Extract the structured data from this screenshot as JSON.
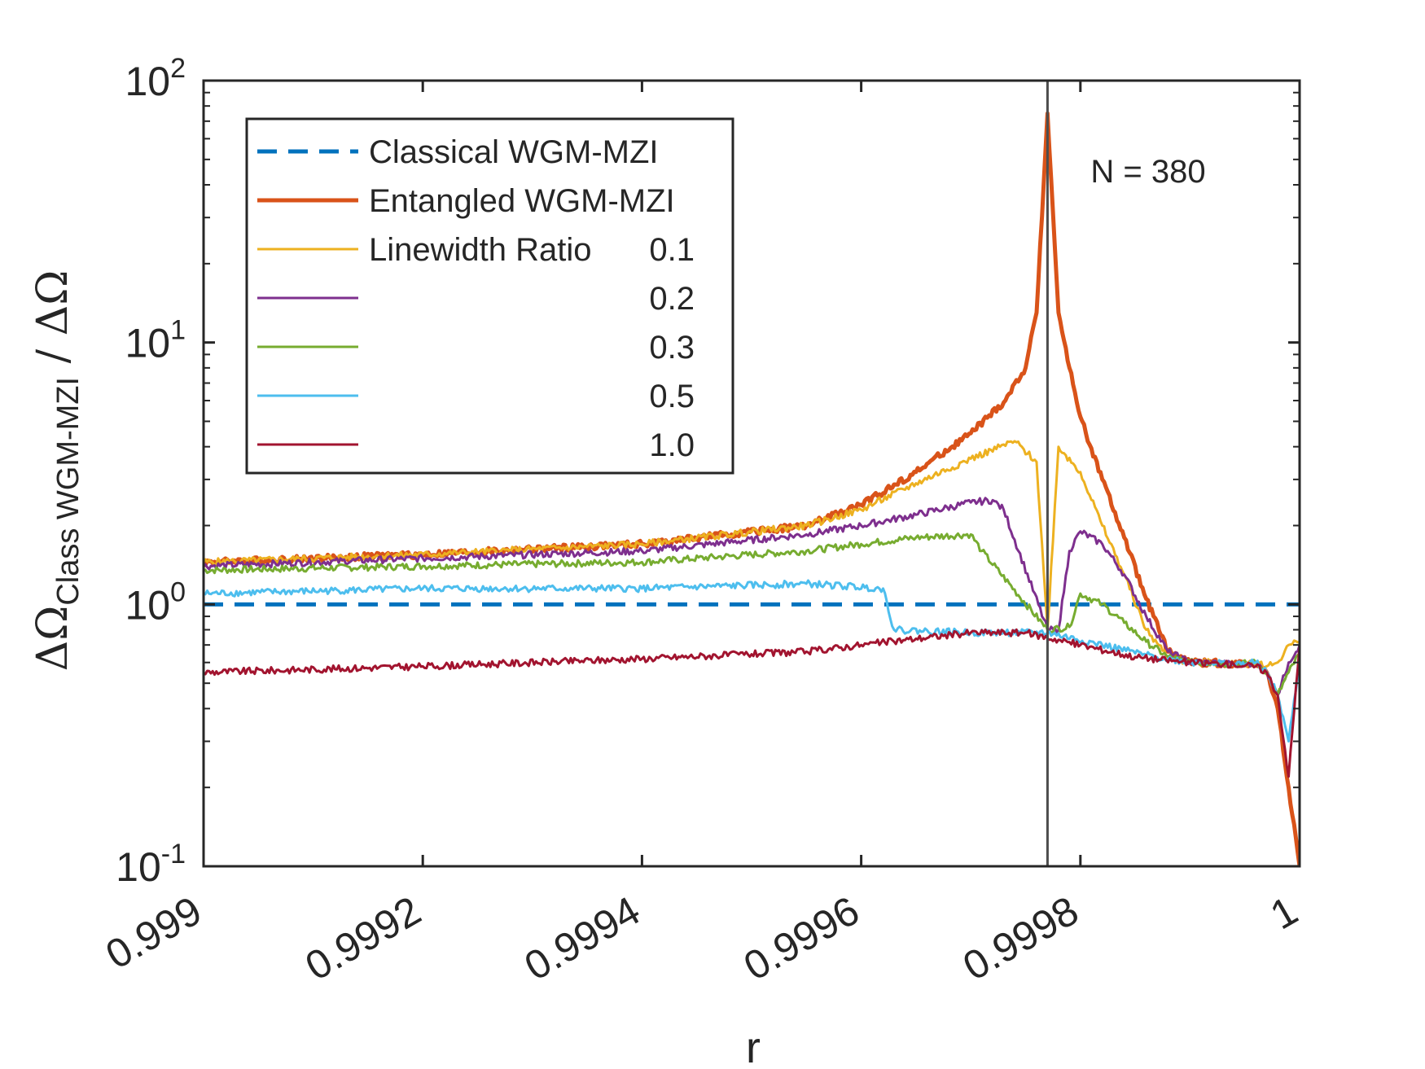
{
  "chart_data": {
    "type": "line",
    "xlabel": "r",
    "ylabel": {
      "main": "ΔΩ",
      "sub": "Class WGM-MZI",
      "tail": " / ΔΩ"
    },
    "xlim": [
      0.999,
      1.0
    ],
    "ylim": [
      0.1,
      100
    ],
    "yscale": "log",
    "grid": false,
    "legend_position": "top-left",
    "xticks": [
      0.999,
      0.9992,
      0.9994,
      0.9996,
      0.9998,
      1.0
    ],
    "xtick_labels": [
      "0.999",
      "0.9992",
      "0.9994",
      "0.9996",
      "0.9998",
      "1"
    ],
    "yticks": [
      {
        "value": 0.1,
        "base": "10",
        "exp": "-1"
      },
      {
        "value": 1,
        "base": "10",
        "exp": "0"
      },
      {
        "value": 10,
        "base": "10",
        "exp": "1"
      },
      {
        "value": 100,
        "base": "10",
        "exp": "2"
      }
    ],
    "annotation": "N = 380",
    "vline_x": 0.99977,
    "legend": [
      {
        "label": "Classical WGM-MZI",
        "value": "",
        "color": "#0072BD",
        "style": "dashed",
        "width": 5
      },
      {
        "label": "Entangled WGM-MZI",
        "value": "",
        "color": "#D95319",
        "style": "solid",
        "width": 5
      },
      {
        "label": "Linewidth Ratio",
        "value": "0.1",
        "color": "#EDB120",
        "style": "solid",
        "width": 3
      },
      {
        "label": "",
        "value": "0.2",
        "color": "#7E2F8E",
        "style": "solid",
        "width": 3
      },
      {
        "label": "",
        "value": "0.3",
        "color": "#77AC30",
        "style": "solid",
        "width": 3
      },
      {
        "label": "",
        "value": "0.5",
        "color": "#4DBEEE",
        "style": "solid",
        "width": 3
      },
      {
        "label": "",
        "value": "1.0",
        "color": "#A2142F",
        "style": "solid",
        "width": 3
      }
    ],
    "series": [
      {
        "name": "Classical WGM-MZI",
        "color": "#0072BD",
        "style": "dashed",
        "x": [
          0.999,
          1.0
        ],
        "y": [
          1.0,
          1.0
        ]
      },
      {
        "name": "Entangled WGM-MZI",
        "color": "#D95319",
        "style": "solid",
        "x": [
          0.999,
          0.9992,
          0.9994,
          0.99955,
          0.9996,
          0.99965,
          0.9997,
          0.99973,
          0.99975,
          0.99976,
          0.99977,
          0.99978,
          0.99979,
          0.9998,
          0.99982,
          0.99984,
          0.99986,
          0.99988,
          0.9999,
          0.99992,
          0.99994,
          0.99996,
          0.99997,
          0.99998,
          0.99999,
          1.0
        ],
        "y": [
          1.45,
          1.55,
          1.7,
          2.0,
          2.4,
          3.2,
          4.5,
          5.9,
          8.0,
          13,
          75,
          13,
          8.0,
          5.2,
          3.0,
          1.8,
          1.05,
          0.66,
          0.6,
          0.6,
          0.59,
          0.6,
          0.55,
          0.4,
          0.2,
          0.1
        ]
      },
      {
        "name": "Linewidth Ratio 0.1",
        "color": "#EDB120",
        "style": "solid",
        "x": [
          0.999,
          0.9992,
          0.9994,
          0.99955,
          0.9996,
          0.99965,
          0.9997,
          0.99974,
          0.99976,
          0.99977,
          0.99978,
          0.9998,
          0.99982,
          0.99984,
          0.99986,
          0.99988,
          0.9999,
          0.99992,
          0.99994,
          0.99996,
          0.99997,
          0.99998,
          0.99999,
          1.0
        ],
        "y": [
          1.45,
          1.55,
          1.7,
          2.0,
          2.3,
          2.9,
          3.6,
          4.2,
          3.5,
          0.8,
          4.0,
          3.2,
          2.0,
          1.3,
          0.8,
          0.63,
          0.6,
          0.6,
          0.59,
          0.6,
          0.58,
          0.6,
          0.7,
          0.72
        ]
      },
      {
        "name": "Linewidth Ratio 0.2",
        "color": "#7E2F8E",
        "style": "solid",
        "x": [
          0.999,
          0.9992,
          0.9994,
          0.99955,
          0.9996,
          0.99965,
          0.9997,
          0.99972,
          0.99973,
          0.99977,
          0.99978,
          0.99979,
          0.9998,
          0.99982,
          0.99984,
          0.99986,
          0.99988,
          0.9999,
          0.99992,
          0.99994,
          0.99996,
          0.99997,
          0.99998,
          0.99999,
          1.0
        ],
        "y": [
          1.4,
          1.5,
          1.6,
          1.85,
          2.0,
          2.2,
          2.45,
          2.5,
          2.3,
          0.8,
          0.8,
          1.6,
          1.9,
          1.7,
          1.3,
          0.9,
          0.66,
          0.6,
          0.6,
          0.59,
          0.6,
          0.55,
          0.45,
          0.6,
          0.7
        ]
      },
      {
        "name": "Linewidth Ratio 0.3",
        "color": "#77AC30",
        "style": "solid",
        "x": [
          0.999,
          0.9992,
          0.9994,
          0.99955,
          0.9996,
          0.99965,
          0.9997,
          0.99971,
          0.99977,
          0.99979,
          0.9998,
          0.99982,
          0.99984,
          0.99986,
          0.99988,
          0.9999,
          0.99992,
          0.99994,
          0.99996,
          0.99997,
          0.99998,
          0.99999,
          1.0
        ],
        "y": [
          1.35,
          1.4,
          1.45,
          1.6,
          1.7,
          1.8,
          1.85,
          1.6,
          0.8,
          0.82,
          1.1,
          1.0,
          0.85,
          0.72,
          0.63,
          0.6,
          0.6,
          0.59,
          0.6,
          0.55,
          0.45,
          0.55,
          0.65
        ]
      },
      {
        "name": "Linewidth Ratio 0.5",
        "color": "#4DBEEE",
        "style": "solid",
        "x": [
          0.999,
          0.9992,
          0.9994,
          0.99955,
          0.99962,
          0.99963,
          0.9997,
          0.99977,
          0.99982,
          0.99986,
          0.9999,
          0.99992,
          0.99994,
          0.99996,
          0.99997,
          0.99998,
          0.99999,
          1.0
        ],
        "y": [
          1.1,
          1.15,
          1.15,
          1.2,
          1.15,
          0.8,
          0.78,
          0.78,
          0.7,
          0.64,
          0.6,
          0.6,
          0.59,
          0.6,
          0.55,
          0.45,
          0.3,
          0.6
        ]
      },
      {
        "name": "Linewidth Ratio 1.0",
        "color": "#A2142F",
        "style": "solid",
        "x": [
          0.999,
          0.9992,
          0.9994,
          0.99955,
          0.9996,
          0.99965,
          0.9997,
          0.99975,
          0.9998,
          0.99985,
          0.9999,
          0.99994,
          0.99996,
          0.99997,
          0.99998,
          0.99999,
          1.0
        ],
        "y": [
          0.55,
          0.58,
          0.62,
          0.66,
          0.7,
          0.74,
          0.78,
          0.78,
          0.7,
          0.63,
          0.6,
          0.59,
          0.58,
          0.55,
          0.45,
          0.22,
          0.7
        ]
      }
    ]
  }
}
